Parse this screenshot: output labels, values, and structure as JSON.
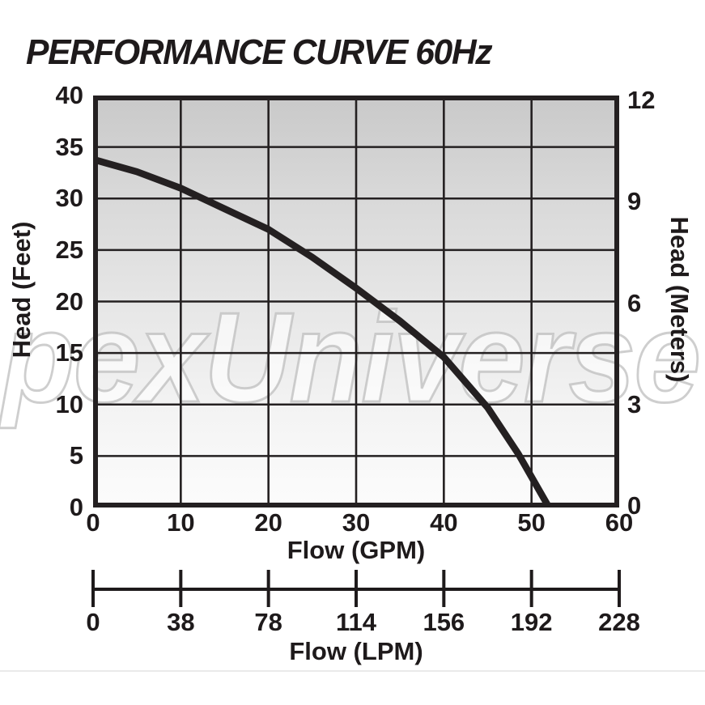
{
  "title": "PERFORMANCE CURVE 60Hz",
  "watermark": "pexUniverse",
  "chart_data": {
    "type": "line",
    "title": "PERFORMANCE CURVE 60Hz",
    "frequency": "60Hz",
    "legend": false,
    "grid": true,
    "x_axis": {
      "label": "Flow (GPM)",
      "min": 0,
      "max": 60,
      "ticks": [
        0,
        10,
        20,
        30,
        40,
        50,
        60
      ]
    },
    "y_axis": {
      "label": "Head (Feet)",
      "min": 0,
      "max": 40,
      "ticks": [
        40,
        35,
        30,
        25,
        20,
        15,
        10,
        5,
        0
      ]
    },
    "y_axis_right": {
      "label": "Head (Meters)",
      "min": 0,
      "max": 12,
      "ticks": [
        12,
        9,
        6,
        3,
        0
      ],
      "feet_per_meter": 3.2808
    },
    "x_axis_secondary": {
      "label": "Flow (LPM)",
      "ticks": [
        0,
        38,
        78,
        114,
        156,
        192,
        228
      ]
    },
    "series": [
      {
        "name": "pump-performance-curve-60hz",
        "x_gpm": [
          0,
          5,
          10,
          15,
          20,
          25,
          30,
          35,
          40,
          45,
          48.5,
          52
        ],
        "y_feet": [
          33.8,
          32.6,
          31.0,
          29.0,
          27.0,
          24.3,
          21.3,
          18.1,
          14.6,
          9.7,
          5.2,
          0
        ],
        "shutoff_head_ft": 33.8,
        "max_flow_gpm": 52
      }
    ],
    "colors": {
      "line": "#242021",
      "grid": "#242021",
      "text": "#1e1a1b",
      "plot_bg_top": "#c9c9c9",
      "plot_bg_bottom": "#fcfcfc",
      "watermark_fill": "#ffffff",
      "watermark_stroke": "#bdbdbd"
    }
  }
}
